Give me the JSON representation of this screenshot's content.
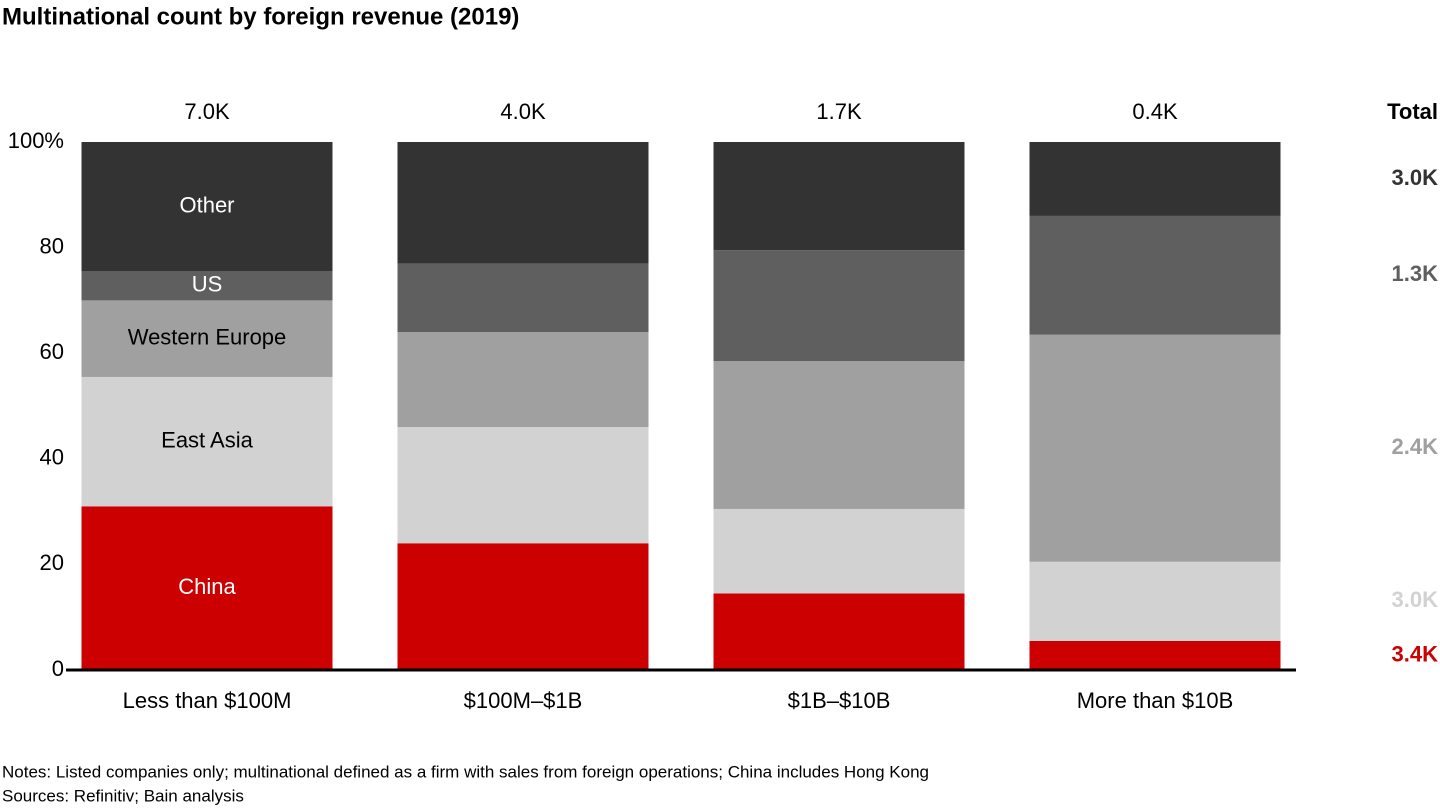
{
  "chart_data": {
    "type": "stacked_bar_percent",
    "title": "Multinational count by foreign revenue (2019)",
    "categories": [
      "Less than $100M",
      "$100M–$1B",
      "$1B–$10B",
      "More than $10B"
    ],
    "column_totals": [
      "7.0K",
      "4.0K",
      "1.7K",
      "0.4K"
    ],
    "total_header": "Total",
    "series": [
      {
        "name": "China",
        "color": "#cc0000",
        "values": [
          31,
          24,
          14.5,
          5.5
        ],
        "total": "3.4K"
      },
      {
        "name": "East Asia",
        "color": "#d2d2d2",
        "values": [
          24.5,
          22,
          16,
          15
        ],
        "total": "3.0K"
      },
      {
        "name": "Western Europe",
        "color": "#a0a0a0",
        "values": [
          14.5,
          18,
          28,
          43
        ],
        "total": "2.4K"
      },
      {
        "name": "US",
        "color": "#5f5f5f",
        "values": [
          5.5,
          13,
          21,
          22.5
        ],
        "total": "1.3K"
      },
      {
        "name": "Other",
        "color": "#333333",
        "values": [
          24.5,
          23,
          20.5,
          14
        ],
        "total": "3.0K"
      }
    ],
    "ylim": [
      0,
      100
    ],
    "yticks": [
      0,
      20,
      40,
      60,
      80,
      {
        "value": 100,
        "label": "100%"
      }
    ],
    "notes": [
      "Notes: Listed companies only; multinational defined as a firm with sales from foreign operations; China includes Hong Kong",
      "Sources: Refinitiv; Bain analysis"
    ]
  }
}
